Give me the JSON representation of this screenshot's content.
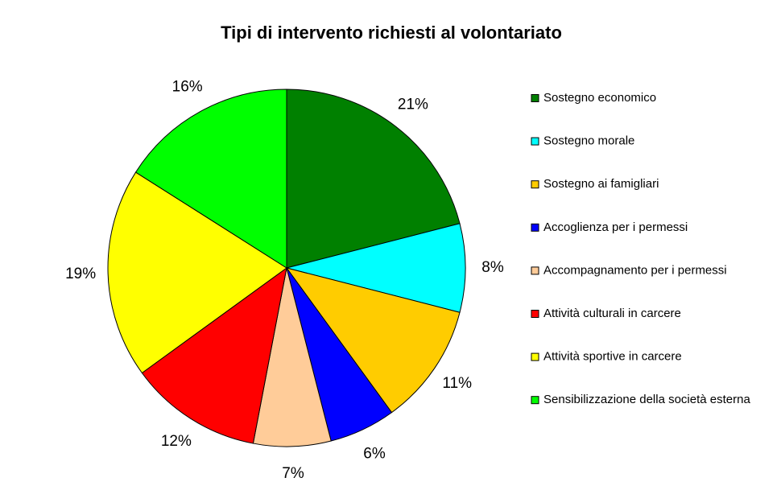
{
  "chart_data": {
    "type": "pie",
    "title": "Tipi di intervento richiesti al volontariato",
    "categories": [
      "Sostegno economico",
      "Sostegno morale",
      "Sostegno ai famigliari",
      "Accoglienza per i permessi",
      "Accompagnamento per i permessi",
      "Attività culturali in carcere",
      "Attività sportive in carcere",
      "Sensibilizzazione della società esterna"
    ],
    "values": [
      21,
      8,
      11,
      6,
      7,
      12,
      19,
      16
    ],
    "value_labels": [
      "21%",
      "8%",
      "11%",
      "6%",
      "7%",
      "12%",
      "19%",
      "16%"
    ],
    "colors": [
      "#008000",
      "#00ffff",
      "#ffcc00",
      "#0000ff",
      "#ffcc99",
      "#ff0000",
      "#ffff00",
      "#00ff00"
    ],
    "legend": "right"
  }
}
